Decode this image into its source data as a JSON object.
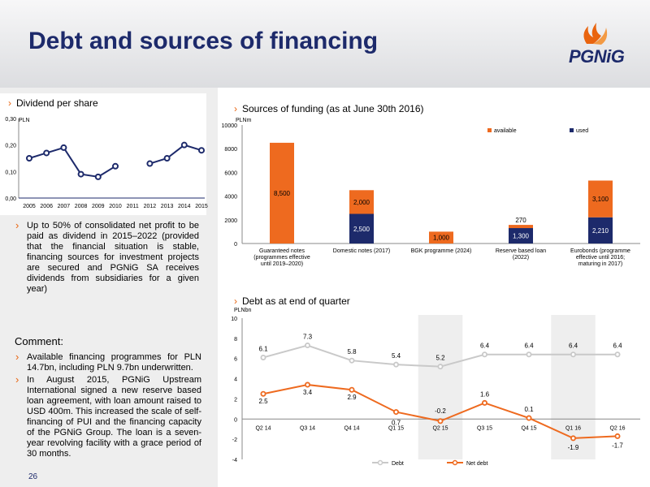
{
  "slide": {
    "title": "Debt and sources of financing",
    "logo_text": "PGNiG",
    "page_number": "26"
  },
  "dividend": {
    "section_title": "Dividend per share",
    "text": "Up to 50% of consolidated net profit to be paid as dividend in 2015–2022 (provided that the financial situation is stable, financing sources for investment projects are secured and PGNiG SA receives dividends from subsidiaries for a given year)"
  },
  "comment": {
    "label": "Comment:",
    "bullets": [
      "Available financing programmes for PLN 14.7bn, including PLN 9.7bn underwritten.",
      "In August 2015, PGNiG Upstream International signed a new reserve based loan agreement, with loan amount raised to USD 400m. This increased the scale of self-financing of PUI and the financing capacity of the PGNiG Group. The loan is a seven-year revolving facility with a grace period of 30 months."
    ]
  },
  "funding": {
    "section_title": "Sources of funding (as at June 30th 2016)"
  },
  "debt": {
    "section_title": "Debt as at end of quarter"
  },
  "chart_data": [
    {
      "type": "line",
      "title": "Dividend per share",
      "ylabel": "PLN",
      "ylim": [
        0,
        0.3
      ],
      "yticks": [
        "0,00",
        "0,10",
        "0,20",
        "0,30"
      ],
      "categories": [
        "2005",
        "2006",
        "2007",
        "2008",
        "2009",
        "2010",
        "2011",
        "2012",
        "2013",
        "2014",
        "2015"
      ],
      "series": [
        {
          "values": [
            0.15,
            0.17,
            0.19,
            0.09,
            0.08,
            0.12,
            null,
            0.13,
            0.15,
            0.2,
            0.18
          ]
        }
      ],
      "colors": {
        "line": "#1d2a6b"
      },
      "grid": false
    },
    {
      "type": "bar",
      "stacked": true,
      "title": "Sources of funding (as at June 30th 2016)",
      "ylabel": "PLNm",
      "ylim": [
        0,
        10000
      ],
      "yticks": [
        "0",
        "2000",
        "4000",
        "6000",
        "8000",
        "10000"
      ],
      "legend_position": "top",
      "categories": [
        "Guaranteed notes (programmes effective until 2019–2020)",
        "Domestic notes (2017)",
        "BGK programme (2024)",
        "Reserve based loan (2022)",
        "Eurobonds (programme effective until 2016; maturing in 2017)"
      ],
      "series": [
        {
          "name": "used",
          "values": [
            0,
            2500,
            0,
            1300,
            2210
          ],
          "labels": [
            "",
            "2,500",
            "",
            "1,300",
            "2,210"
          ],
          "color": "#1d2a6b"
        },
        {
          "name": "available",
          "values": [
            8500,
            2000,
            1000,
            270,
            3100
          ],
          "labels": [
            "8,500",
            "2,000",
            "1,000",
            "270",
            "3,100"
          ],
          "color": "#ee6a1f"
        }
      ],
      "grid": false
    },
    {
      "type": "line",
      "title": "Debt as at end of quarter",
      "ylabel": "PLNbn",
      "ylim": [
        -4,
        10
      ],
      "yticks": [
        "-4",
        "-2",
        "0",
        "2",
        "4",
        "6",
        "8",
        "10"
      ],
      "legend_position": "bottom",
      "categories": [
        "Q2 14",
        "Q3 14",
        "Q4 14",
        "Q1 15",
        "Q2 15",
        "Q3 15",
        "Q4 15",
        "Q1 16",
        "Q2 16"
      ],
      "shaded_categories": [
        4,
        7
      ],
      "series": [
        {
          "name": "Debt",
          "values": [
            6.1,
            7.3,
            5.8,
            5.4,
            5.2,
            6.4,
            6.4,
            6.4,
            6.4
          ],
          "labels": [
            "6.1",
            "7.3",
            "5.8",
            "5.4",
            "5.2",
            "6.4",
            "6.4",
            "6.4",
            "6.4"
          ],
          "color": "#c9c9c9"
        },
        {
          "name": "Net debt",
          "values": [
            2.5,
            3.4,
            2.9,
            0.7,
            -0.2,
            1.6,
            0.1,
            -1.9,
            -1.7
          ],
          "labels": [
            "2.5",
            "3.4",
            "2.9",
            "0.7",
            "-0.2",
            "1.6",
            "0.1",
            "-1.9",
            "-1.7"
          ],
          "color": "#ee6a1f"
        }
      ],
      "grid": false
    }
  ]
}
